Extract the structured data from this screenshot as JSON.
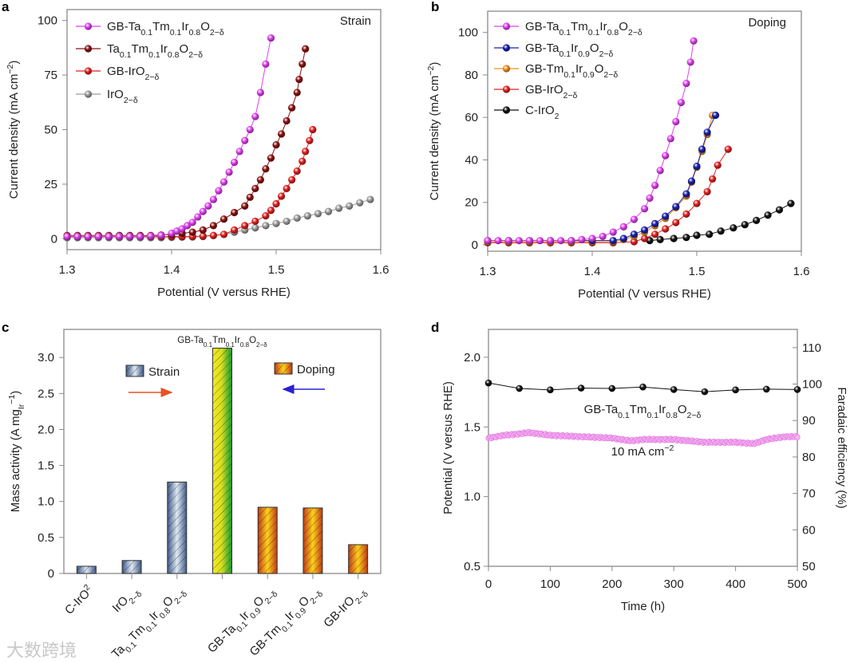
{
  "panel_letters": {
    "a": "a",
    "b": "b",
    "c": "c",
    "d": "d"
  },
  "watermark": "大数跨境",
  "chart_data": [
    {
      "panel": "a",
      "type": "line",
      "annotation": "Strain",
      "xlabel": "Potential (V versus RHE)",
      "ylabel": "Current density (mA cm^{−2})",
      "xlim": [
        1.3,
        1.6
      ],
      "ylim": [
        -5,
        105
      ],
      "xticks": [
        1.3,
        1.4,
        1.5,
        1.6
      ],
      "xtick_labels": [
        "1.3",
        "1.4",
        "1.5",
        "1.6"
      ],
      "yticks": [
        0,
        25,
        50,
        75,
        100
      ],
      "ytick_labels": [
        "0",
        "25",
        "50",
        "75",
        "100"
      ],
      "legend": "top-left",
      "series": [
        {
          "name": "GB-Ta_{0.1}Tm_{0.1}Ir_{0.8}O_{2−δ}",
          "color": "#e040f0",
          "x": [
            1.3,
            1.31,
            1.32,
            1.33,
            1.34,
            1.35,
            1.36,
            1.37,
            1.38,
            1.39,
            1.4,
            1.405,
            1.41,
            1.415,
            1.42,
            1.425,
            1.43,
            1.435,
            1.44,
            1.445,
            1.45,
            1.455,
            1.46,
            1.465,
            1.47,
            1.475,
            1.48,
            1.485,
            1.49,
            1.495
          ],
          "y": [
            1,
            1,
            1,
            1,
            1,
            1,
            1,
            1,
            1.2,
            1.5,
            2.5,
            3.5,
            4.5,
            6,
            7.5,
            10,
            12.5,
            15,
            18,
            22,
            26,
            30.5,
            35,
            40,
            45,
            50,
            56,
            67,
            80,
            92
          ]
        },
        {
          "name": "Ta_{0.1}Tm_{0.1}Ir_{0.8}O_{2−δ}",
          "color": "#8a1010",
          "x": [
            1.3,
            1.31,
            1.32,
            1.33,
            1.34,
            1.35,
            1.36,
            1.37,
            1.38,
            1.39,
            1.4,
            1.41,
            1.42,
            1.43,
            1.44,
            1.45,
            1.46,
            1.47,
            1.475,
            1.48,
            1.485,
            1.49,
            1.495,
            1.5,
            1.505,
            1.51,
            1.515,
            1.52,
            1.522,
            1.525,
            1.528
          ],
          "y": [
            1.5,
            1.5,
            1.5,
            1.5,
            1.5,
            1.5,
            1.5,
            1.5,
            1.5,
            1.7,
            2,
            2.5,
            3,
            4,
            6,
            9,
            12,
            15,
            19,
            23,
            27,
            32,
            37,
            43,
            48,
            54,
            60,
            67,
            73,
            80,
            87
          ]
        },
        {
          "name": "GB-IrO_{2−δ}",
          "color": "#e02020",
          "x": [
            1.3,
            1.31,
            1.32,
            1.33,
            1.34,
            1.35,
            1.36,
            1.37,
            1.38,
            1.39,
            1.4,
            1.41,
            1.42,
            1.43,
            1.44,
            1.45,
            1.46,
            1.47,
            1.48,
            1.49,
            1.495,
            1.5,
            1.505,
            1.51,
            1.515,
            1.52,
            1.525,
            1.528,
            1.532,
            1.535
          ],
          "y": [
            1,
            1,
            1,
            1,
            1,
            1,
            1,
            1,
            1,
            1,
            1,
            1,
            1,
            1.2,
            1.5,
            2,
            4,
            6,
            8,
            10.5,
            13,
            16,
            19.5,
            23,
            27,
            31,
            35.5,
            40,
            45,
            50
          ]
        },
        {
          "name": "IrO_{2−δ}",
          "color": "#9a9a9a",
          "x": [
            1.3,
            1.31,
            1.32,
            1.33,
            1.34,
            1.35,
            1.36,
            1.37,
            1.38,
            1.39,
            1.4,
            1.41,
            1.42,
            1.43,
            1.44,
            1.45,
            1.46,
            1.47,
            1.48,
            1.49,
            1.5,
            1.51,
            1.52,
            1.53,
            1.54,
            1.55,
            1.56,
            1.57,
            1.58,
            1.59
          ],
          "y": [
            0.5,
            0.5,
            0.5,
            0.5,
            0.5,
            0.5,
            0.5,
            0.5,
            0.5,
            0.5,
            0.6,
            0.7,
            0.8,
            1,
            1.5,
            2,
            3,
            4,
            5,
            6,
            7,
            8,
            9.5,
            10.5,
            11.5,
            12.5,
            14,
            15,
            16.5,
            18
          ]
        }
      ]
    },
    {
      "panel": "b",
      "type": "line",
      "annotation": "Doping",
      "xlabel": "Potential (V versus RHE)",
      "ylabel": "Current density (mA cm^{−2})",
      "xlim": [
        1.3,
        1.6
      ],
      "ylim": [
        -3,
        110
      ],
      "xticks": [
        1.3,
        1.4,
        1.5,
        1.6
      ],
      "xtick_labels": [
        "1.3",
        "1.4",
        "1.5",
        "1.6"
      ],
      "yticks": [
        0,
        20,
        40,
        60,
        80,
        100
      ],
      "ytick_labels": [
        "0",
        "20",
        "40",
        "60",
        "80",
        "100"
      ],
      "legend": "top-left",
      "series": [
        {
          "name": "GB-Ta_{0.1}Tm_{0.1}Ir_{0.8}O_{2−δ}",
          "color": "#e040f0",
          "x": [
            1.3,
            1.31,
            1.32,
            1.33,
            1.34,
            1.35,
            1.36,
            1.37,
            1.38,
            1.39,
            1.4,
            1.41,
            1.42,
            1.43,
            1.44,
            1.45,
            1.455,
            1.46,
            1.465,
            1.47,
            1.475,
            1.48,
            1.485,
            1.49,
            1.494,
            1.497
          ],
          "y": [
            2,
            2,
            2,
            2,
            2,
            2,
            2,
            2,
            2,
            2.5,
            3,
            4,
            6,
            8.5,
            12,
            17,
            22,
            28,
            35,
            42,
            50,
            58,
            67,
            76,
            86,
            96
          ]
        },
        {
          "name": "GB-Ta_{0.1}Ir_{0.9}O_{2−δ}",
          "color": "#1a20b0",
          "x": [
            1.3,
            1.32,
            1.34,
            1.36,
            1.38,
            1.4,
            1.42,
            1.43,
            1.44,
            1.45,
            1.46,
            1.47,
            1.48,
            1.49,
            1.495,
            1.5,
            1.505,
            1.51,
            1.518
          ],
          "y": [
            2,
            2,
            2,
            2,
            2,
            2,
            2,
            3,
            5,
            7,
            10,
            13.5,
            18,
            24,
            30,
            37,
            45,
            53,
            61
          ]
        },
        {
          "name": "GB-Tm_{0.1}Ir_{0.9}O_{2−δ}",
          "color": "#f0901a",
          "x": [
            1.3,
            1.32,
            1.34,
            1.36,
            1.38,
            1.4,
            1.42,
            1.43,
            1.44,
            1.45,
            1.46,
            1.47,
            1.48,
            1.49,
            1.495,
            1.5,
            1.505,
            1.51,
            1.515
          ],
          "y": [
            1.5,
            1.5,
            1.5,
            1.5,
            1.5,
            1.5,
            1.5,
            2.5,
            4,
            6,
            9,
            12.5,
            17.5,
            23,
            29.5,
            36.5,
            44,
            52,
            61
          ]
        },
        {
          "name": "GB-IrO_{2−δ}",
          "color": "#e02020",
          "x": [
            1.3,
            1.32,
            1.34,
            1.36,
            1.38,
            1.4,
            1.42,
            1.44,
            1.45,
            1.46,
            1.47,
            1.48,
            1.49,
            1.5,
            1.51,
            1.515,
            1.52,
            1.53
          ],
          "y": [
            1,
            1,
            1,
            1,
            1,
            1,
            1,
            1.5,
            3,
            5,
            7.5,
            10.5,
            14.5,
            19.5,
            25,
            31,
            37.5,
            45
          ]
        },
        {
          "name": "C-IrO_{2}",
          "color": "#111111",
          "x": [
            1.455,
            1.465,
            1.478,
            1.49,
            1.5,
            1.512,
            1.523,
            1.535,
            1.546,
            1.557,
            1.568,
            1.579,
            1.59
          ],
          "y": [
            2,
            2.5,
            3,
            3.5,
            4.5,
            5,
            6.5,
            8,
            9.5,
            11.5,
            14,
            16.5,
            19.5
          ]
        }
      ]
    },
    {
      "panel": "c",
      "type": "bar",
      "ylabel": "Mass activity (A mg_{Ir}^{−1})",
      "ylim": [
        0,
        3.39
      ],
      "yticks": [
        0,
        0.5,
        1.0,
        1.5,
        2.0,
        2.5,
        3.0
      ],
      "ytick_labels": [
        "0",
        "0.5",
        "1.0",
        "1.5",
        "2.0",
        "2.5",
        "3.0"
      ],
      "categories": [
        "C-IrO^{2}",
        "IrO_{2−δ}",
        "Ta_{0.1}Tm_{0.1}Ir_{0.8}O_{2−δ}",
        "",
        "GB-Ta_{0.1}Ir_{0.9}O_{2−δ}",
        "GB-Tm_{0.1}Ir_{0.9}O_{2−δ}",
        "GB-IrO_{2−δ}"
      ],
      "values": [
        0.1,
        0.18,
        1.27,
        3.13,
        0.92,
        0.91,
        0.4
      ],
      "groups": [
        "strain",
        "strain",
        "strain",
        "best",
        "doping",
        "doping",
        "doping"
      ],
      "top_bar_label": "GB-Ta_{0.1}Tm_{0.1}Ir_{0.8}O_{2−δ}",
      "legend": [
        {
          "key": "strain",
          "label": "Strain",
          "arrow_color": "#e85020",
          "arrow_direction": "right"
        },
        {
          "key": "doping",
          "label": "Doping",
          "arrow_color": "#2a20d0",
          "arrow_direction": "left"
        }
      ]
    },
    {
      "panel": "d",
      "type": "line",
      "xlabel": "Time (h)",
      "ylabel_left": "Potential (V versus RHE)",
      "ylabel_right": "Faradaic efficiency (%)",
      "xlim": [
        0,
        500
      ],
      "ylim_left": [
        0.5,
        2.2
      ],
      "ylim_right": [
        50,
        115
      ],
      "xticks": [
        0,
        100,
        200,
        300,
        400,
        500
      ],
      "xtick_labels": [
        "0",
        "100",
        "200",
        "300",
        "400",
        "500"
      ],
      "yticks_left": [
        0.5,
        1.0,
        1.5,
        2.0
      ],
      "ytick_labels_left": [
        "0.5",
        "1.0",
        "1.5",
        "2.0"
      ],
      "yticks_right": [
        50,
        60,
        70,
        80,
        90,
        100,
        110
      ],
      "ytick_labels_right": [
        "50",
        "60",
        "70",
        "80",
        "90",
        "100",
        "110"
      ],
      "annotation_sample": "GB-Ta_{0.1}Tm_{0.1}Ir_{0.8}O_{2−δ}",
      "annotation_current": "10 mA cm^{−2}",
      "series": [
        {
          "name": "Faradaic efficiency",
          "axis": "right",
          "color": "#111111",
          "x": [
            0,
            50,
            100,
            150,
            200,
            250,
            300,
            350,
            400,
            450,
            500
          ],
          "y": [
            100.3,
            98.8,
            98.4,
            98.9,
            98.8,
            99.2,
            98.5,
            97.9,
            98.4,
            98.6,
            98.5
          ]
        },
        {
          "name": "Potential",
          "axis": "left",
          "color": "#f090f0",
          "x": [
            0,
            25,
            50,
            65,
            100,
            150,
            200,
            230,
            250,
            300,
            350,
            380,
            400,
            430,
            450,
            480,
            500
          ],
          "y": [
            1.42,
            1.44,
            1.45,
            1.46,
            1.44,
            1.43,
            1.42,
            1.4,
            1.41,
            1.41,
            1.39,
            1.39,
            1.39,
            1.38,
            1.41,
            1.43,
            1.43
          ]
        }
      ]
    }
  ]
}
